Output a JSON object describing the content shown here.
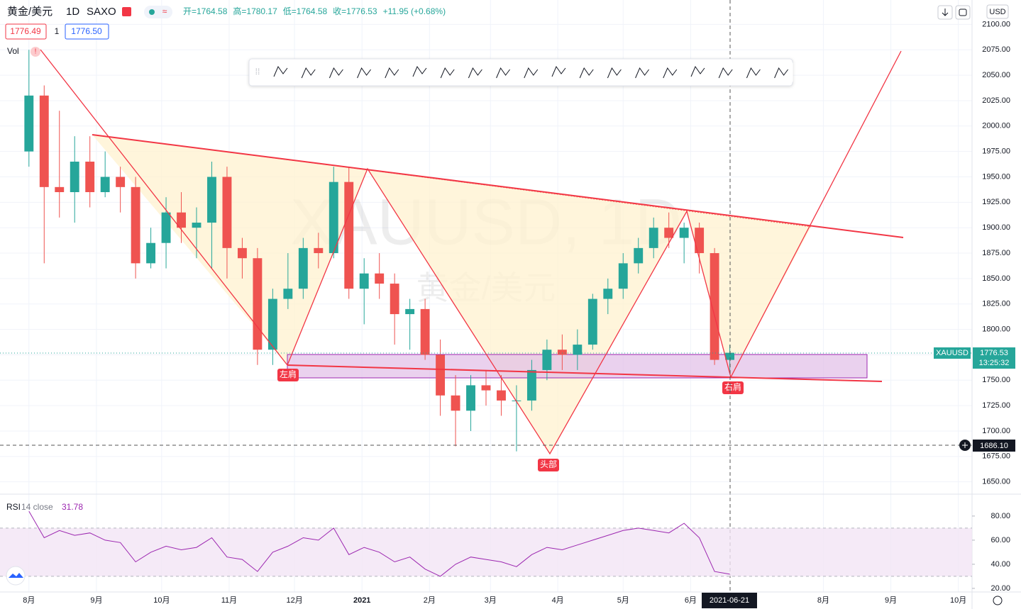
{
  "header": {
    "symbol": "黄金/美元",
    "interval": "1D",
    "exchange": "SAXO",
    "stats": [
      "开=1764.58",
      "高=1780.17",
      "低=1764.58",
      "收=1776.53",
      "+11.95 (+0.68%)"
    ],
    "bid": "1776.49",
    "spread": "1",
    "ask": "1776.50",
    "volume_label": "Vol",
    "currency": "USD"
  },
  "watermark": {
    "symbol": "XAUUSD, 1D",
    "name": "黄金/美元"
  },
  "annotations": {
    "left_shoulder": "左肩",
    "head": "头部",
    "right_shoulder": "右肩"
  },
  "price_label": {
    "symbol": "XAUUSD",
    "price": "1776.53",
    "countdown": "13:25:32",
    "crosshair_price": "1686.10",
    "crosshair_date": "2021-06-21"
  },
  "chart_data": [
    {
      "type": "candlestick",
      "up_color": "#26a69a",
      "down_color": "#ef5350",
      "categories": [
        null,
        null,
        null,
        null,
        null,
        null,
        null,
        null,
        null,
        null,
        null,
        null,
        null,
        null,
        null,
        null,
        null,
        null,
        null,
        null,
        null,
        null,
        null,
        null,
        null,
        null,
        null,
        null,
        null,
        null,
        null,
        null,
        null,
        null,
        null,
        null,
        null,
        null,
        null,
        null,
        null,
        null,
        null,
        null,
        null,
        null,
        null
      ],
      "open": [
        1975,
        2030,
        1940,
        1935,
        1965,
        1935,
        1950,
        1940,
        1865,
        1885,
        1915,
        1900,
        1905,
        1950,
        1880,
        1870,
        1780,
        1830,
        1840,
        1880,
        1875,
        1945,
        1840,
        1855,
        1845,
        1815,
        1820,
        1775,
        1735,
        1720,
        1745,
        1740,
        1730,
        1730,
        1760,
        1780,
        1775,
        1785,
        1830,
        1840,
        1865,
        1880,
        1900,
        1890,
        1900,
        1875,
        1770
      ],
      "high": [
        2075,
        2040,
        2015,
        1990,
        1990,
        1975,
        1960,
        1950,
        1900,
        1930,
        1935,
        1920,
        1965,
        1960,
        1890,
        1880,
        1840,
        1875,
        1890,
        1895,
        1960,
        1960,
        1870,
        1875,
        1855,
        1830,
        1830,
        1790,
        1755,
        1755,
        1760,
        1755,
        1745,
        1770,
        1790,
        1795,
        1800,
        1835,
        1850,
        1875,
        1890,
        1910,
        1915,
        1905,
        1905,
        1880,
        1785
      ],
      "low": [
        1960,
        1865,
        1910,
        1905,
        1920,
        1930,
        1915,
        1850,
        1860,
        1860,
        1885,
        1870,
        1860,
        1850,
        1850,
        1765,
        1765,
        1820,
        1830,
        1860,
        1870,
        1830,
        1805,
        1830,
        1785,
        1780,
        1770,
        1715,
        1685,
        1700,
        1725,
        1715,
        1680,
        1720,
        1750,
        1760,
        1760,
        1780,
        1815,
        1830,
        1855,
        1870,
        1880,
        1865,
        1855,
        1765,
        1760
      ],
      "close": [
        2030,
        1940,
        1935,
        1965,
        1935,
        1950,
        1940,
        1865,
        1885,
        1915,
        1900,
        1905,
        1950,
        1880,
        1870,
        1780,
        1830,
        1840,
        1880,
        1875,
        1945,
        1840,
        1855,
        1845,
        1815,
        1820,
        1775,
        1735,
        1720,
        1745,
        1740,
        1730,
        1730,
        1760,
        1780,
        1775,
        1785,
        1830,
        1840,
        1865,
        1880,
        1900,
        1890,
        1900,
        1875,
        1770,
        1777
      ],
      "xlim": [
        -1.9,
        61.9
      ],
      "xticks": [
        {
          "value": 0,
          "label": "8月"
        },
        {
          "value": 4.43,
          "label": "9月"
        },
        {
          "value": 8.71,
          "label": "10月"
        },
        {
          "value": 13.14,
          "label": "11月"
        },
        {
          "value": 17.43,
          "label": "12月"
        },
        {
          "value": 21.86,
          "label": "2021"
        },
        {
          "value": 26.29,
          "label": "2月"
        },
        {
          "value": 30.29,
          "label": "3月"
        },
        {
          "value": 34.71,
          "label": "4月"
        },
        {
          "value": 39,
          "label": "5月"
        },
        {
          "value": 43.43,
          "label": "6月"
        },
        {
          "value": 52.14,
          "label": "8月"
        },
        {
          "value": 56.57,
          "label": "9月"
        },
        {
          "value": 61,
          "label": "10月"
        }
      ],
      "ylim": [
        1640,
        2124
      ],
      "yticks": [
        {
          "value": 1650,
          "label": "1650.00"
        },
        {
          "value": 1675,
          "label": "1675.00"
        },
        {
          "value": 1700,
          "label": "1700.00"
        },
        {
          "value": 1725,
          "label": "1725.00"
        },
        {
          "value": 1750,
          "label": "1750.00"
        },
        {
          "value": 1775,
          "label": "1775.00"
        },
        {
          "value": 1800,
          "label": "1800.00"
        },
        {
          "value": 1825,
          "label": "1825.00"
        },
        {
          "value": 1850,
          "label": "1850.00"
        },
        {
          "value": 1875,
          "label": "1875.00"
        },
        {
          "value": 1900,
          "label": "1900.00"
        },
        {
          "value": 1925,
          "label": "1925.00"
        },
        {
          "value": 1950,
          "label": "1950.00"
        },
        {
          "value": 1975,
          "label": "1975.00"
        },
        {
          "value": 2000,
          "label": "2000.00"
        },
        {
          "value": 2025,
          "label": "2025.00"
        },
        {
          "value": 2050,
          "label": "2050.00"
        },
        {
          "value": 2075,
          "label": "2075.00"
        },
        {
          "value": 2100,
          "label": "2100.00"
        }
      ]
    },
    {
      "type": "line",
      "title": "RSI",
      "subtitle": "14 close",
      "last_label": "31.78",
      "color": "#9c27b0",
      "categories": [
        null,
        null,
        null,
        null,
        null,
        null,
        null,
        null,
        null,
        null,
        null,
        null,
        null,
        null,
        null,
        null,
        null,
        null,
        null,
        null,
        null,
        null,
        null,
        null,
        null,
        null,
        null,
        null,
        null,
        null,
        null,
        null,
        null,
        null,
        null,
        null,
        null,
        null,
        null,
        null,
        null,
        null,
        null,
        null,
        null,
        null,
        null
      ],
      "values": [
        84,
        62,
        68,
        64,
        66,
        60,
        58,
        42,
        50,
        55,
        52,
        54,
        62,
        46,
        44,
        34,
        50,
        55,
        62,
        60,
        70,
        48,
        54,
        50,
        42,
        46,
        36,
        30,
        40,
        46,
        44,
        42,
        38,
        48,
        54,
        52,
        56,
        60,
        64,
        68,
        70,
        68,
        66,
        74,
        62,
        34,
        31.78
      ],
      "bands": [
        30,
        70
      ],
      "ylim": [
        17,
        97
      ],
      "yticks": [
        {
          "value": 20,
          "label": "20.00"
        },
        {
          "value": 40,
          "label": "40.00"
        },
        {
          "value": 60,
          "label": "60.00"
        },
        {
          "value": 80,
          "label": "80.00"
        }
      ]
    }
  ]
}
